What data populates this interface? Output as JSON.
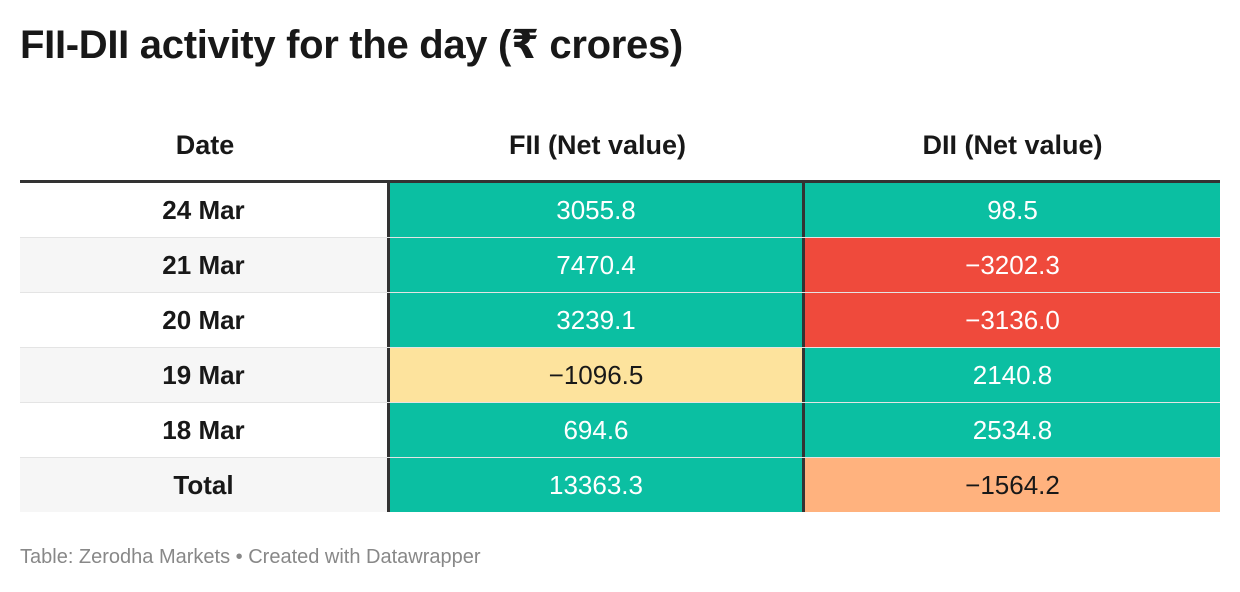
{
  "title": "FII-DII activity for the day (₹ crores)",
  "footer": "Table: Zerodha Markets • Created with Datawrapper",
  "colors": {
    "positive": "#0bbfa2",
    "negative_strong": "#ef4a3c",
    "negative_mild_yellow": "#fde39d",
    "negative_mild_orange": "#ffb27e",
    "text_light": "#ffffff",
    "text_dark": "#181818"
  },
  "chart_data": {
    "type": "table",
    "title": "FII-DII activity for the day (₹ crores)",
    "columns": [
      "Date",
      "FII (Net value)",
      "DII (Net value)"
    ],
    "rows": [
      {
        "date": "24 Mar",
        "fii": "3055.8",
        "dii": "98.5",
        "fii_color": "#0bbfa2",
        "dii_color": "#0bbfa2",
        "fii_text": "#ffffff",
        "dii_text": "#ffffff"
      },
      {
        "date": "21 Mar",
        "fii": "7470.4",
        "dii": "−3202.3",
        "fii_color": "#0bbfa2",
        "dii_color": "#ef4a3c",
        "fii_text": "#ffffff",
        "dii_text": "#ffffff"
      },
      {
        "date": "20 Mar",
        "fii": "3239.1",
        "dii": "−3136.0",
        "fii_color": "#0bbfa2",
        "dii_color": "#ef4a3c",
        "fii_text": "#ffffff",
        "dii_text": "#ffffff"
      },
      {
        "date": "19 Mar",
        "fii": "−1096.5",
        "dii": "2140.8",
        "fii_color": "#fde39d",
        "dii_color": "#0bbfa2",
        "fii_text": "#181818",
        "dii_text": "#ffffff"
      },
      {
        "date": "18 Mar",
        "fii": "694.6",
        "dii": "2534.8",
        "fii_color": "#0bbfa2",
        "dii_color": "#0bbfa2",
        "fii_text": "#ffffff",
        "dii_text": "#ffffff"
      },
      {
        "date": "Total",
        "fii": "13363.3",
        "dii": "−1564.2",
        "fii_color": "#0bbfa2",
        "dii_color": "#ffb27e",
        "fii_text": "#ffffff",
        "dii_text": "#181818"
      }
    ],
    "source": "Table: Zerodha Markets • Created with Datawrapper"
  }
}
